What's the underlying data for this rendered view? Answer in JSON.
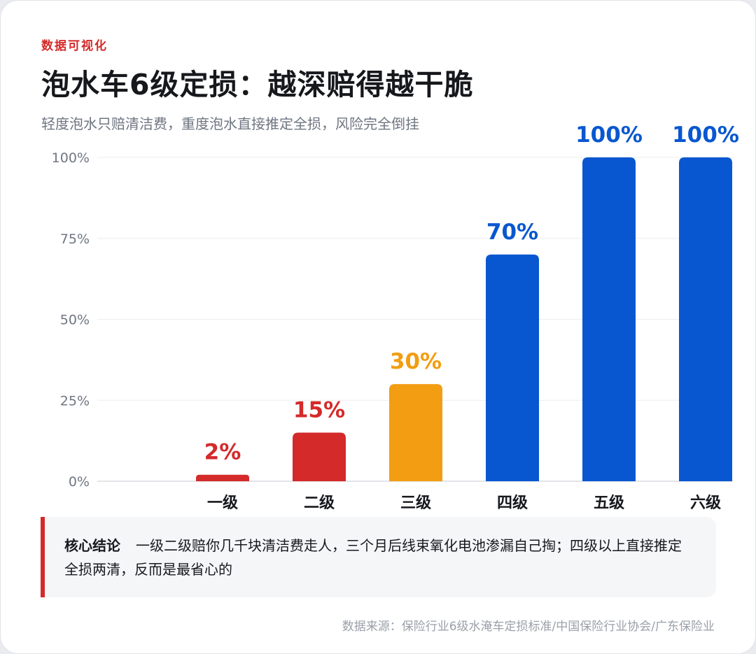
{
  "header": {
    "eyebrow": "数据可视化",
    "title": "泡水车6级定损：越深赔得越干脆",
    "subtitle": "轻度泡水只赔清洁费，重度泡水直接推定全损，风险完全倒挂"
  },
  "chart_data": {
    "type": "bar",
    "categories": [
      "一级",
      "二级",
      "三级",
      "四级",
      "五级",
      "六级"
    ],
    "values": [
      2,
      15,
      30,
      70,
      100,
      100
    ],
    "value_labels": [
      "2%",
      "15%",
      "30%",
      "70%",
      "100%",
      "100%"
    ],
    "bar_colors": [
      "#d42a2a",
      "#d42a2a",
      "#f29d12",
      "#0957d0",
      "#0957d0",
      "#0957d0"
    ],
    "ylim": [
      0,
      100
    ],
    "yticks": [
      0,
      25,
      50,
      75,
      100
    ],
    "ytick_labels": [
      "0%",
      "25%",
      "50%",
      "75%",
      "100%"
    ],
    "grid": true,
    "xlabel": "",
    "ylabel": ""
  },
  "callout": {
    "heading": "核心结论",
    "text": "一级二级赔你几千块清洁费走人，三个月后线束氧化电池渗漏自己掏；四级以上直接推定全损两清，反而是最省心的",
    "accent_color": "#d42a2a"
  },
  "footer": {
    "source": "数据来源：保险行业6级水淹车定损标准/中国保险行业协会/广东保险业"
  }
}
